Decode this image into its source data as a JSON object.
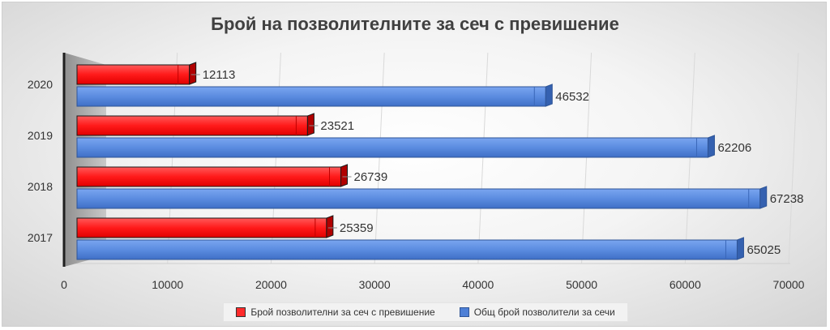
{
  "chart_data": {
    "type": "bar",
    "orientation": "horizontal",
    "title": "Брой на позволителните за сеч с превишение",
    "categories": [
      "2020",
      "2019",
      "2018",
      "2017"
    ],
    "series": [
      {
        "name": "Брой позволителни за сеч с превишение",
        "values": [
          12113,
          23521,
          26739,
          25359
        ],
        "color": "#ff2a2a"
      },
      {
        "name": "Общ брой позволители за сечи",
        "values": [
          46532,
          62206,
          67238,
          65025
        ],
        "color": "#4d7fd6"
      }
    ],
    "xlim": [
      0,
      70000
    ],
    "xticks": [
      "0",
      "10000",
      "20000",
      "30000",
      "40000",
      "50000",
      "60000",
      "70000"
    ],
    "xlabel": "",
    "ylabel": "",
    "grid": true,
    "legend_position": "bottom",
    "style": "3d"
  }
}
